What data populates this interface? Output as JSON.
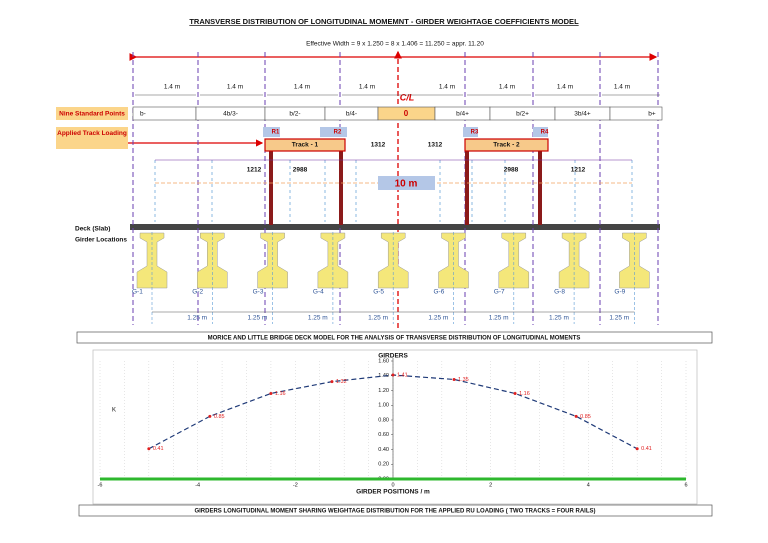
{
  "header": {
    "title": "TRANSVERSE DISTRIBUTION OF LONGITUDINAL MOMEMNT - GIRDER WEIGHTAGE COEFFICIENTS MODEL",
    "effective_width": "Effective Width = 9 x 1.250 = 8 x 1.406 = 11.250 = appr. 11.20"
  },
  "spacing_labels": [
    "1.4 m",
    "1.4 m",
    "1.4 m",
    "1.4 m",
    "1.4 m",
    "1.4 m",
    "1.4 m",
    "1.4 m"
  ],
  "standard_points": {
    "label": "Nine Standard Points",
    "points": [
      "b-",
      "4b/3-",
      "b/2-",
      "b/4-",
      "0",
      "b/4+",
      "b/2+",
      "3b/4+",
      "b+"
    ]
  },
  "centerline": "C/L",
  "loading": {
    "label": "Applied Track Loading",
    "rails": [
      "R1",
      "R2",
      "R3",
      "R4"
    ],
    "tracks": [
      "Track - 1",
      "Track - 2"
    ],
    "dimensions": [
      "1212",
      "2988",
      "1312",
      "1312",
      "2988",
      "1212"
    ],
    "span": "10 m"
  },
  "deck": {
    "slab": "Deck (Slab)",
    "girders_label": "Girder Locations",
    "girders": [
      "G-1",
      "G-2",
      "G-3",
      "G-4",
      "G-5",
      "G-6",
      "G-7",
      "G-8",
      "G-9"
    ],
    "spacings": [
      "1.25 m",
      "1.25 m",
      "1.25 m",
      "1.25 m",
      "1.25 m",
      "1.25 m",
      "1.25 m",
      "1.25 m"
    ]
  },
  "captions": {
    "model": "MORICE AND LITTLE BRIDGE DECK MODEL FOR THE ANALYSIS OF TRANSVERSE DISTRIBUTION OF LONGITUDINAL MOMENTS",
    "chart": "GIRDERS LONGITUDINAL MOMENT SHARING WEIGHTAGE DISTRIBUTION FOR THE APPLIED RU LOADING  ( TWO TRACKS = FOUR RAILS)"
  },
  "chart_data": {
    "type": "line",
    "title": "GIRDERS",
    "x_label": "GIRDER POSITIONS / m",
    "y_label": "K",
    "x": [
      -5,
      -3.75,
      -2.5,
      -1.25,
      0,
      1.25,
      2.5,
      3.75,
      5
    ],
    "series": [
      {
        "name": "K",
        "color": "#1f3a78",
        "values": [
          0.41,
          0.85,
          1.16,
          1.32,
          1.41,
          1.35,
          1.16,
          0.85,
          0.41
        ]
      }
    ],
    "xlim": [
      -6,
      6
    ],
    "xticks": [
      -6,
      -4,
      -2,
      0,
      2,
      4,
      6
    ],
    "ylim": [
      0,
      1.6
    ],
    "yticks": [
      {
        "value": 0,
        "label": "0.00"
      },
      {
        "value": 0.2,
        "label": "0.20"
      },
      {
        "value": 0.4,
        "label": "0.40"
      },
      {
        "value": 0.6,
        "label": "0.60"
      },
      {
        "value": 0.8,
        "label": "0.80"
      },
      {
        "value": 1,
        "label": "1.00"
      },
      {
        "value": 1.2,
        "label": "1.20"
      },
      {
        "value": 1.4,
        "label": "1.40"
      },
      {
        "value": 1.6,
        "label": "1.60"
      }
    ],
    "grid": true,
    "marker_color": "#e02020",
    "label_color": "#e02020"
  }
}
